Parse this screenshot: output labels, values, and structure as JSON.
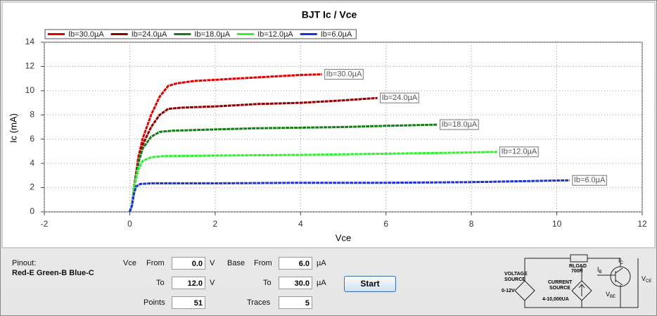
{
  "chart_data": {
    "type": "line",
    "title": "BJT Ic / Vce",
    "x_label": "Vce",
    "y_label": "Ic (mA)",
    "xlim": [
      -2,
      12
    ],
    "xticks": [
      -2,
      0,
      2,
      4,
      6,
      8,
      10,
      12
    ],
    "ylim": [
      0,
      14
    ],
    "yticks": [
      0,
      2,
      4,
      6,
      8,
      10,
      12,
      14
    ],
    "grid": true,
    "legend": "top-left",
    "series": [
      {
        "name": "Ib=30.0µA",
        "color": "#e00000",
        "x": [
          0,
          0.05,
          0.1,
          0.2,
          0.3,
          0.5,
          0.7,
          0.9,
          1.1,
          1.5,
          2,
          2.5,
          3,
          3.5,
          4,
          4.5
        ],
        "values": [
          0,
          0.5,
          2,
          4.5,
          6,
          8,
          9.5,
          10.4,
          10.6,
          10.8,
          10.9,
          11.0,
          11.1,
          11.2,
          11.3,
          11.35
        ]
      },
      {
        "name": "Ib=24.0µA",
        "color": "#8b0000",
        "x": [
          0,
          0.05,
          0.1,
          0.2,
          0.3,
          0.5,
          0.7,
          0.9,
          1.2,
          2,
          3,
          4,
          5,
          5.8
        ],
        "values": [
          0,
          0.5,
          2,
          4,
          5.5,
          7,
          8,
          8.5,
          8.6,
          8.7,
          8.9,
          9.0,
          9.2,
          9.4
        ]
      },
      {
        "name": "Ib=18.0µA",
        "color": "#1a7a1a",
        "x": [
          0,
          0.05,
          0.1,
          0.2,
          0.3,
          0.5,
          0.7,
          1,
          2,
          3,
          4,
          5,
          6,
          7.2
        ],
        "values": [
          0,
          0.5,
          2,
          4,
          5.2,
          6.2,
          6.6,
          6.7,
          6.8,
          6.9,
          6.95,
          7.0,
          7.1,
          7.2
        ]
      },
      {
        "name": "Ib=12.0µA",
        "color": "#33ee33",
        "x": [
          0,
          0.05,
          0.1,
          0.2,
          0.3,
          0.5,
          0.8,
          2,
          4,
          6,
          8,
          8.6
        ],
        "values": [
          0,
          0.5,
          2,
          3.5,
          4.2,
          4.5,
          4.6,
          4.65,
          4.7,
          4.8,
          4.9,
          4.95
        ]
      },
      {
        "name": "Ib=6.0µA",
        "color": "#1a33dd",
        "x": [
          0,
          0.05,
          0.1,
          0.15,
          0.25,
          0.5,
          2,
          4,
          6,
          8,
          10.3
        ],
        "values": [
          0,
          0.5,
          1.5,
          2.1,
          2.3,
          2.35,
          2.35,
          2.4,
          2.4,
          2.45,
          2.6
        ]
      }
    ]
  },
  "form": {
    "pinout_label": "Pinout:",
    "pinout": "Red-E Green-B Blue-C",
    "vce": {
      "label": "Vce",
      "from_label": "From",
      "from": "0.0",
      "from_unit": "V",
      "to_label": "To",
      "to": "12.0",
      "to_unit": "V",
      "points_label": "Points",
      "points": "51"
    },
    "base": {
      "label": "Base",
      "from_label": "From",
      "from": "6.0",
      "from_unit": "µA",
      "to_label": "To",
      "to": "30.0",
      "to_unit": "µA",
      "traces_label": "Traces",
      "traces": "5"
    },
    "start_button": "Start"
  },
  "circuit": {
    "voltage_source": [
      "VOLTAGE",
      "SOURCE"
    ],
    "voltage_range": "0-12V",
    "rload": "RLOAD",
    "rload_value": "700R",
    "current_source": [
      "CURRENT",
      "SOURCE"
    ],
    "current_range": "4-10,000UA",
    "ib": "I",
    "ib_sub": "B",
    "ic": "I",
    "ic_sub": "C",
    "vbe": "V",
    "vbe_sub": "BE",
    "vce": "V",
    "vce_sub": "CE"
  }
}
